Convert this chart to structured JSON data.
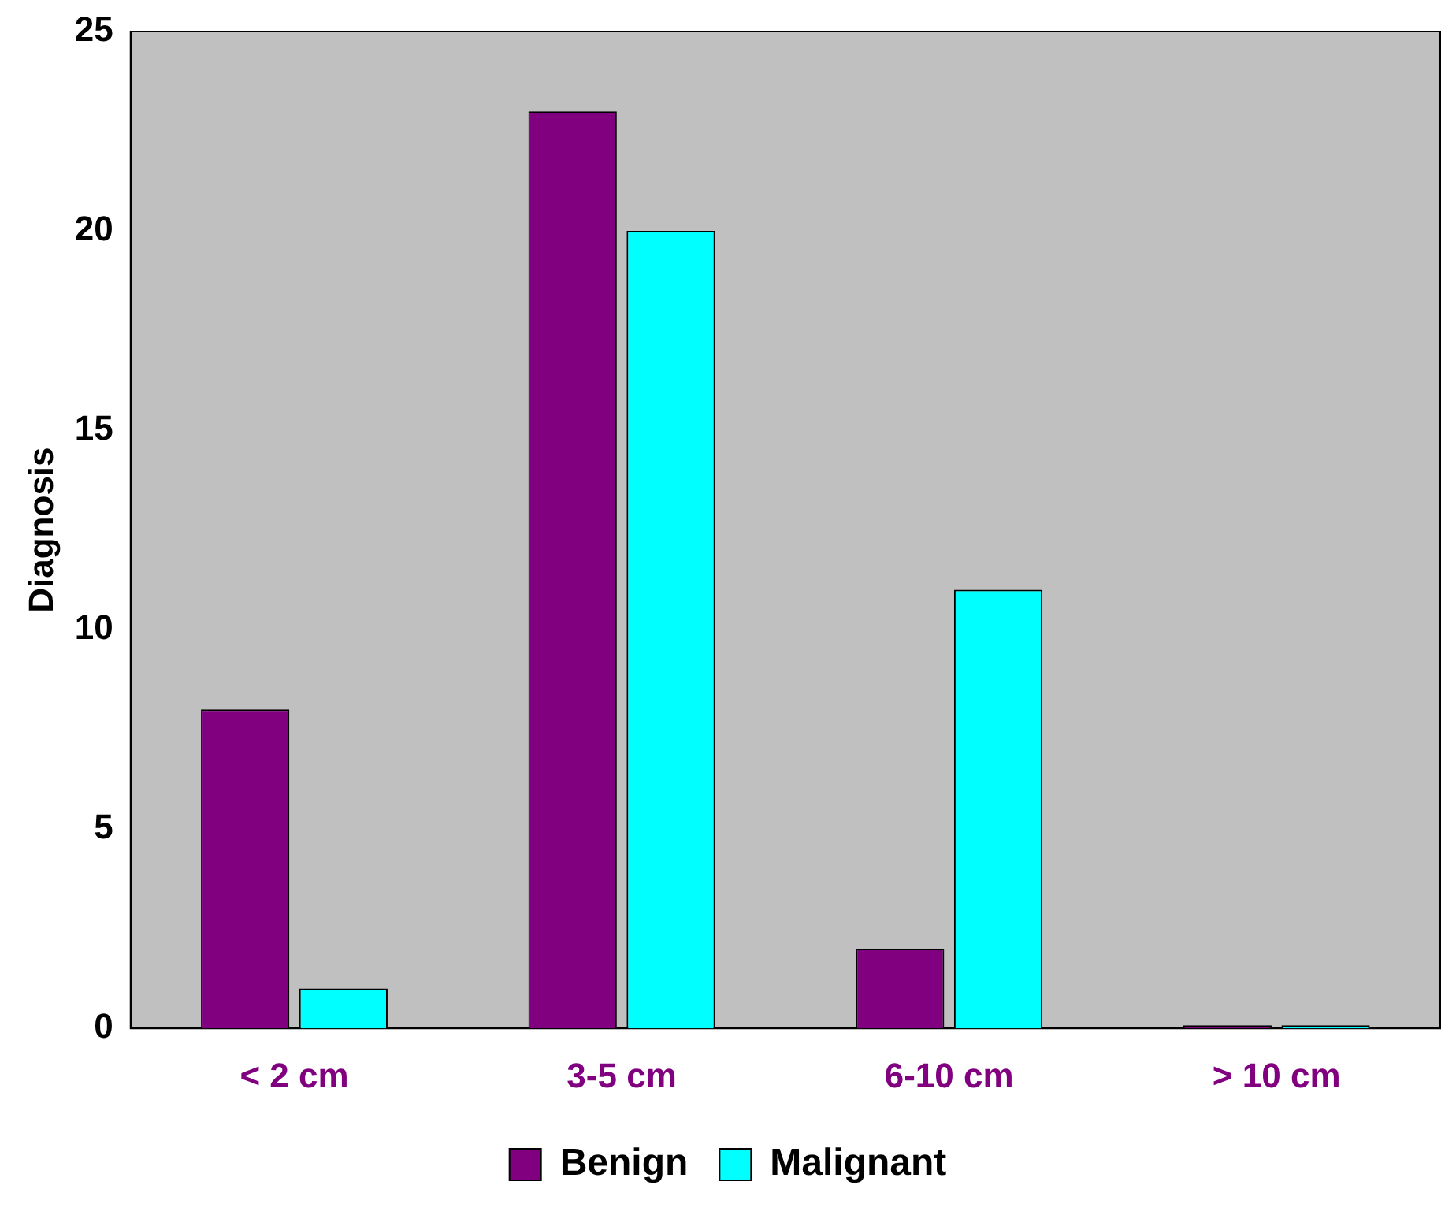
{
  "chart_data": {
    "type": "bar",
    "ylabel": "Diagnosis",
    "categories": [
      "< 2 cm",
      "3-5 cm",
      "6-10 cm",
      "> 10 cm"
    ],
    "series": [
      {
        "name": "Benign",
        "color": "#800080",
        "values": [
          8,
          23,
          2,
          0
        ]
      },
      {
        "name": "Malignant",
        "color": "#00ffff",
        "values": [
          1,
          20,
          11,
          0
        ]
      }
    ],
    "ylim": [
      0,
      25
    ],
    "yticks": [
      0,
      5,
      10,
      15,
      20,
      25
    ],
    "grid": false,
    "legend": "bottom"
  }
}
